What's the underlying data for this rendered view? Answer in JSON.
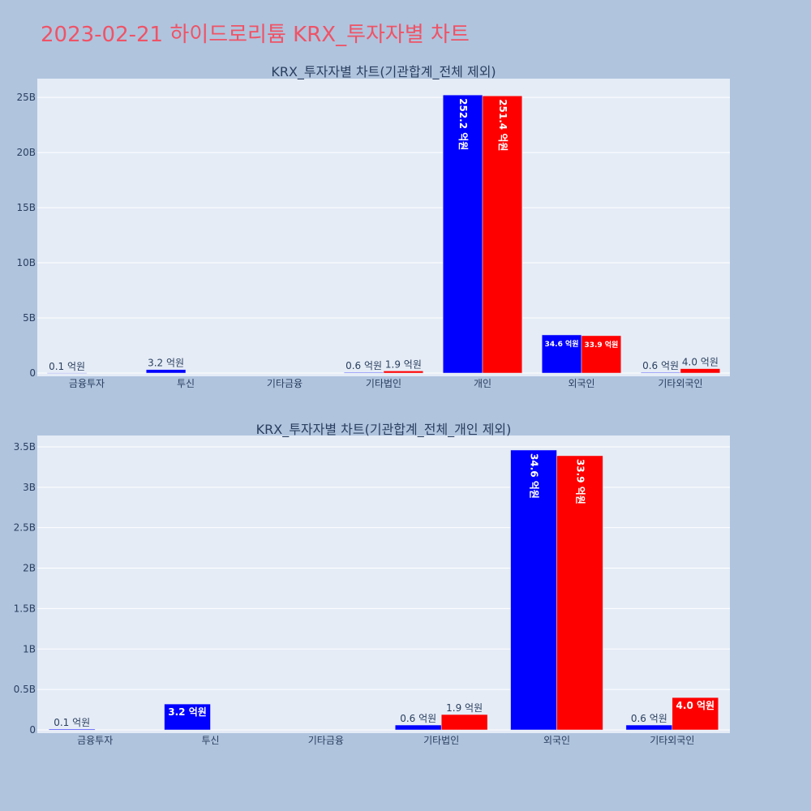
{
  "page_title": "2023-02-21 하이드로리튬 KRX_투자자별 차트",
  "colors": {
    "buy": "#0000ff",
    "sell": "#ff0000",
    "text": "#2a3f5f",
    "title": "#ef5366"
  },
  "chart_data": [
    {
      "type": "bar",
      "title": "KRX_투자자별 차트(기관합계_전체 제외)",
      "categories": [
        "금융투자",
        "투신",
        "기타금융",
        "기타법인",
        "개인",
        "외국인",
        "기타외국인"
      ],
      "yticks": [
        "0",
        "5B",
        "10B",
        "15B",
        "20B",
        "25B"
      ],
      "ylim": [
        0,
        26700000000
      ],
      "series": [
        {
          "color": "#0000ff",
          "values": [
            10000000,
            320000000,
            0,
            60000000,
            25220000000,
            3460000000,
            60000000
          ],
          "labels": [
            "0.1 억원",
            "3.2 억원",
            "",
            "0.6 억원",
            "252.2 억원",
            "34.6 억원",
            "0.6 억원"
          ]
        },
        {
          "color": "#ff0000",
          "values": [
            0,
            0,
            0,
            190000000,
            25140000000,
            3390000000,
            400000000
          ],
          "labels": [
            "",
            "",
            "",
            "1.9 억원",
            "251.4 억원",
            "33.9 억원",
            "4.0 억원"
          ]
        }
      ]
    },
    {
      "type": "bar",
      "title": "KRX_투자자별 차트(기관합계_전체_개인 제외)",
      "categories": [
        "금융투자",
        "투신",
        "기타금융",
        "기타법인",
        "외국인",
        "기타외국인"
      ],
      "yticks": [
        "0",
        "0.5B",
        "1B",
        "1.5B",
        "2B",
        "2.5B",
        "3B",
        "3.5B"
      ],
      "ylim": [
        0,
        3640000000
      ],
      "series": [
        {
          "color": "#0000ff",
          "values": [
            10000000,
            320000000,
            0,
            60000000,
            3460000000,
            60000000
          ],
          "labels": [
            "0.1 억원",
            "3.2 억원",
            "",
            "0.6 억원",
            "34.6 억원",
            "0.6 억원"
          ]
        },
        {
          "color": "#ff0000",
          "values": [
            0,
            0,
            0,
            190000000,
            3390000000,
            400000000
          ],
          "labels": [
            "",
            "",
            "",
            "1.9 억원",
            "33.9 억원",
            "4.0 억원"
          ]
        }
      ]
    }
  ]
}
